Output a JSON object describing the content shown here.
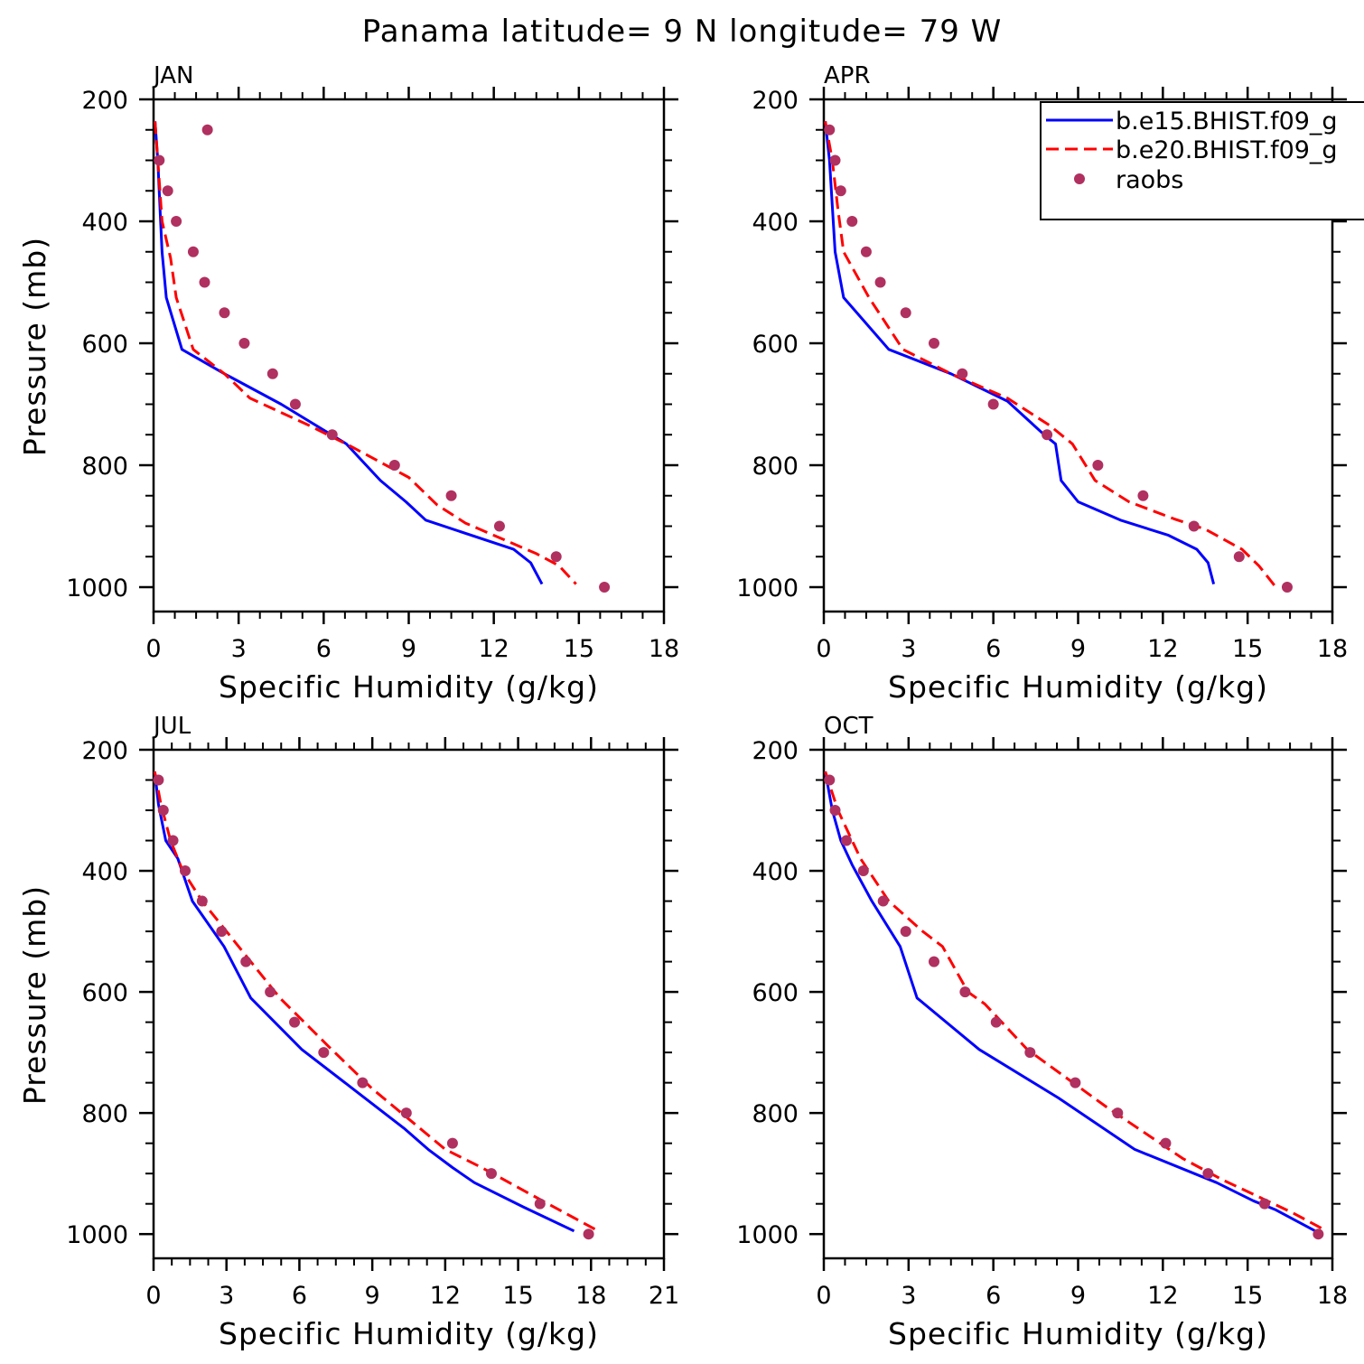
{
  "title": "Panama  latitude= 9 N longitude= 79 W",
  "colors": {
    "model1": "#0000ff",
    "model2": "#ff0000",
    "obs": "#b03060"
  },
  "legend": {
    "placement": "top-right of APR panel (clipped)",
    "entries": [
      "b.e15.BHIST.f09_g",
      "b.e20.BHIST.f09_g",
      "raobs"
    ]
  },
  "chart_data": [
    {
      "type": "line",
      "label": "JAN",
      "xlabel": "Specific Humidity (g/kg)",
      "ylabel": "Pressure (mb)",
      "xlim": [
        0,
        18
      ],
      "ylim": [
        200,
        1000
      ],
      "y_inverted": true,
      "xticks": [
        "0",
        "3",
        "6",
        "9",
        "12",
        "15",
        "18"
      ],
      "yticks": [
        "200",
        "400",
        "600",
        "800",
        "1000"
      ],
      "series": [
        {
          "name": "b.e15.BHIST.f09_g",
          "style": "solid",
          "x": [
            0.05,
            0.15,
            0.25,
            0.3,
            0.45,
            1.0,
            2.5,
            4.5,
            6.8,
            8.0,
            8.9,
            9.6,
            12.7,
            13.3,
            13.7
          ],
          "y": [
            236,
            300,
            400,
            450,
            525,
            610,
            650,
            700,
            765,
            825,
            860,
            890,
            938,
            960,
            995
          ]
        },
        {
          "name": "b.e20.BHIST.f09_g",
          "style": "dashed",
          "x": [
            0.05,
            0.15,
            0.3,
            0.6,
            0.8,
            1.4,
            2.5,
            3.4,
            5.5,
            7.0,
            9.0,
            10.0,
            11.0,
            13.5,
            14.3,
            14.9
          ],
          "y": [
            236,
            300,
            400,
            460,
            525,
            610,
            650,
            690,
            735,
            770,
            820,
            865,
            895,
            945,
            965,
            995
          ]
        },
        {
          "name": "raobs",
          "style": "markers",
          "x": [
            1.9,
            0.2,
            0.5,
            0.8,
            1.4,
            1.8,
            2.5,
            3.2,
            4.2,
            5.0,
            6.3,
            8.5,
            10.5,
            12.2,
            14.2,
            15.9
          ],
          "y": [
            250,
            300,
            350,
            400,
            450,
            500,
            550,
            600,
            650,
            700,
            750,
            800,
            850,
            900,
            950,
            1000
          ]
        }
      ]
    },
    {
      "type": "line",
      "label": "APR",
      "xlabel": "Specific Humidity (g/kg)",
      "ylabel": "",
      "xlim": [
        0,
        18
      ],
      "ylim": [
        200,
        1000
      ],
      "y_inverted": true,
      "xticks": [
        "0",
        "3",
        "6",
        "9",
        "12",
        "15",
        "18"
      ],
      "yticks": [
        "200",
        "400",
        "600",
        "800",
        "1000"
      ],
      "series": [
        {
          "name": "b.e15.BHIST.f09_g",
          "style": "solid",
          "x": [
            0.05,
            0.2,
            0.4,
            0.7,
            2.3,
            4.5,
            6.5,
            7.8,
            8.2,
            8.4,
            9.0,
            10.5,
            12.2,
            13.2,
            13.6,
            13.8
          ],
          "y": [
            236,
            300,
            450,
            525,
            610,
            650,
            695,
            750,
            765,
            825,
            860,
            890,
            915,
            938,
            960,
            995
          ]
        },
        {
          "name": "b.e20.BHIST.f09_g",
          "style": "dashed",
          "x": [
            0.05,
            0.3,
            0.5,
            0.7,
            1.6,
            2.8,
            4.5,
            6.5,
            8.0,
            8.8,
            9.6,
            10.8,
            12.4,
            13.5,
            14.8,
            15.4,
            16.0
          ],
          "y": [
            236,
            300,
            380,
            450,
            525,
            610,
            650,
            690,
            735,
            765,
            825,
            860,
            888,
            905,
            938,
            965,
            1000
          ]
        },
        {
          "name": "raobs",
          "style": "markers",
          "x": [
            0.2,
            0.4,
            0.6,
            1.0,
            1.5,
            2.0,
            2.9,
            3.9,
            4.9,
            6.0,
            7.9,
            9.7,
            11.3,
            13.1,
            14.7,
            16.4
          ],
          "y": [
            250,
            300,
            350,
            400,
            450,
            500,
            550,
            600,
            650,
            700,
            750,
            800,
            850,
            900,
            950,
            1000
          ]
        }
      ]
    },
    {
      "type": "line",
      "label": "JUL",
      "xlabel": "Specific Humidity (g/kg)",
      "ylabel": "Pressure (mb)",
      "xlim": [
        0,
        21
      ],
      "ylim": [
        200,
        1000
      ],
      "y_inverted": true,
      "xticks": [
        "0",
        "3",
        "6",
        "9",
        "12",
        "15",
        "18",
        "21"
      ],
      "yticks": [
        "200",
        "400",
        "600",
        "800",
        "1000"
      ],
      "series": [
        {
          "name": "b.e15.BHIST.f09_g",
          "style": "solid",
          "x": [
            0.05,
            0.2,
            0.5,
            1.0,
            1.6,
            2.9,
            4.0,
            6.1,
            8.2,
            10.3,
            11.3,
            12.3,
            13.2,
            15.2,
            17.3
          ],
          "y": [
            236,
            290,
            350,
            380,
            450,
            525,
            610,
            695,
            760,
            825,
            860,
            890,
            915,
            955,
            995
          ]
        },
        {
          "name": "b.e20.BHIST.f09_g",
          "style": "dashed",
          "x": [
            0.05,
            0.3,
            0.7,
            1.2,
            2.0,
            3.2,
            4.0,
            5.2,
            7.2,
            9.0,
            10.5,
            12.0,
            13.5,
            16.0,
            18.3
          ],
          "y": [
            236,
            290,
            350,
            400,
            450,
            510,
            550,
            610,
            690,
            760,
            810,
            860,
            890,
            945,
            995
          ]
        },
        {
          "name": "raobs",
          "style": "markers",
          "x": [
            0.2,
            0.4,
            0.8,
            1.3,
            2.0,
            2.8,
            3.8,
            4.8,
            5.8,
            7.0,
            8.6,
            10.4,
            12.3,
            13.9,
            15.9,
            17.9
          ],
          "y": [
            250,
            300,
            350,
            400,
            450,
            500,
            550,
            600,
            650,
            700,
            750,
            800,
            850,
            900,
            950,
            1000
          ]
        }
      ]
    },
    {
      "type": "line",
      "label": "OCT",
      "xlabel": "Specific Humidity (g/kg)",
      "ylabel": "",
      "xlim": [
        0,
        18
      ],
      "ylim": [
        200,
        1000
      ],
      "y_inverted": true,
      "xticks": [
        "0",
        "3",
        "6",
        "9",
        "12",
        "15",
        "18"
      ],
      "yticks": [
        "200",
        "400",
        "600",
        "800",
        "1000"
      ],
      "series": [
        {
          "name": "b.e15.BHIST.f09_g",
          "style": "solid",
          "x": [
            0.05,
            0.3,
            0.6,
            1.0,
            1.7,
            2.7,
            3.3,
            5.5,
            8.3,
            11.0,
            13.9,
            15.2,
            16.0,
            17.4
          ],
          "y": [
            236,
            300,
            350,
            390,
            450,
            525,
            610,
            695,
            775,
            860,
            915,
            945,
            960,
            995
          ]
        },
        {
          "name": "b.e20.BHIST.f09_g",
          "style": "dashed",
          "x": [
            0.05,
            0.5,
            1.3,
            2.3,
            3.5,
            4.2,
            5.1,
            5.7,
            7.2,
            10.0,
            12.7,
            14.1,
            16.6,
            17.8
          ],
          "y": [
            236,
            300,
            380,
            450,
            500,
            525,
            600,
            620,
            695,
            790,
            875,
            910,
            965,
            995
          ]
        },
        {
          "name": "raobs",
          "style": "markers",
          "x": [
            0.2,
            0.4,
            0.8,
            1.4,
            2.1,
            2.9,
            3.9,
            5.0,
            6.1,
            7.3,
            8.9,
            10.4,
            12.1,
            13.6,
            15.6,
            17.5
          ],
          "y": [
            250,
            300,
            350,
            400,
            450,
            500,
            550,
            600,
            650,
            700,
            750,
            800,
            850,
            900,
            950,
            1000
          ]
        }
      ]
    }
  ]
}
